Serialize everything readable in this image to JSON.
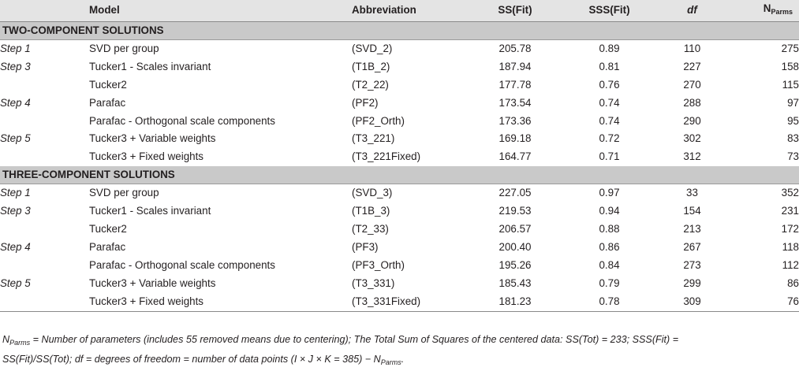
{
  "header": {
    "model": "Model",
    "abbreviation": "Abbreviation",
    "ss_fit": "SS(Fit)",
    "sss_fit": "SSS(Fit)",
    "df": "df",
    "nparms_base": "N",
    "nparms_sub": "Parms"
  },
  "sections": [
    {
      "title": "TWO-COMPONENT SOLUTIONS",
      "rows": [
        {
          "step": "Step 1",
          "model": "SVD per group",
          "abbr": "(SVD_2)",
          "ss": "205.78",
          "sss": "0.89",
          "df": "110",
          "np": "275"
        },
        {
          "step": "Step 3",
          "model": "Tucker1 - Scales invariant",
          "abbr": "(T1B_2)",
          "ss": "187.94",
          "sss": "0.81",
          "df": "227",
          "np": "158"
        },
        {
          "step": "",
          "model": "Tucker2",
          "abbr": "(T2_22)",
          "ss": "177.78",
          "sss": "0.76",
          "df": "270",
          "np": "115"
        },
        {
          "step": "Step 4",
          "model": "Parafac",
          "abbr": "(PF2)",
          "ss": "173.54",
          "sss": "0.74",
          "df": "288",
          "np": "97"
        },
        {
          "step": "",
          "model": "Parafac - Orthogonal scale components",
          "abbr": "(PF2_Orth)",
          "ss": "173.36",
          "sss": "0.74",
          "df": "290",
          "np": "95"
        },
        {
          "step": "Step 5",
          "model": "Tucker3 + Variable weights",
          "abbr": "(T3_221)",
          "ss": "169.18",
          "sss": "0.72",
          "df": "302",
          "np": "83"
        },
        {
          "step": "",
          "model": "Tucker3 + Fixed weights",
          "abbr": "(T3_221Fixed)",
          "ss": "164.77",
          "sss": "0.71",
          "df": "312",
          "np": "73"
        }
      ]
    },
    {
      "title": "THREE-COMPONENT SOLUTIONS",
      "rows": [
        {
          "step": "Step 1",
          "model": "SVD per group",
          "abbr": "(SVD_3)",
          "ss": "227.05",
          "sss": "0.97",
          "df": "33",
          "np": "352"
        },
        {
          "step": "Step 3",
          "model": "Tucker1 - Scales invariant",
          "abbr": "(T1B_3)",
          "ss": "219.53",
          "sss": "0.94",
          "df": "154",
          "np": "231"
        },
        {
          "step": "",
          "model": "Tucker2",
          "abbr": "(T2_33)",
          "ss": "206.57",
          "sss": "0.88",
          "df": "213",
          "np": "172"
        },
        {
          "step": "Step 4",
          "model": "Parafac",
          "abbr": "(PF3)",
          "ss": "200.40",
          "sss": "0.86",
          "df": "267",
          "np": "118"
        },
        {
          "step": "",
          "model": "Parafac - Orthogonal scale components",
          "abbr": "(PF3_Orth)",
          "ss": "195.26",
          "sss": "0.84",
          "df": "273",
          "np": "112"
        },
        {
          "step": "Step 5",
          "model": "Tucker3 + Variable weights",
          "abbr": "(T3_331)",
          "ss": "185.43",
          "sss": "0.79",
          "df": "299",
          "np": "86"
        },
        {
          "step": "",
          "model": "Tucker3 + Fixed weights",
          "abbr": "(T3_331Fixed)",
          "ss": "181.23",
          "sss": "0.78",
          "df": "309",
          "np": "76"
        }
      ]
    }
  ],
  "footnote": {
    "line1_sym_base": "N",
    "line1_sym_sub": "Parms",
    "line1_rest": " = Number of parameters (includes 55 removed means due to centering); The Total Sum of Squares of the centered data: SS(Tot) = 233; SSS(Fit) =",
    "line2_text": "SS(Fit)/SS(Tot); df = degrees of freedom = number of data points (I × J × K = 385) − ",
    "line2_sym_base": "N",
    "line2_sym_sub": "Parms",
    "line2_end": "."
  }
}
